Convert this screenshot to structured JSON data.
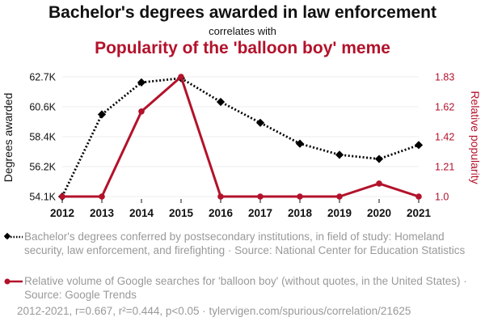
{
  "header": {
    "title": "Bachelor's degrees awarded in law enforcement",
    "subtitle": "correlates with",
    "title2": "Popularity of the 'balloon boy' meme"
  },
  "colors": {
    "series1": "#000000",
    "series2": "#b3122b",
    "muted": "#999999",
    "grid": "#eeeeee"
  },
  "chart_data": {
    "type": "line",
    "x": [
      2012,
      2013,
      2014,
      2015,
      2016,
      2017,
      2018,
      2019,
      2020,
      2021
    ],
    "series": [
      {
        "name": "Bachelor's degrees awarded",
        "axis": "left",
        "style": "dotted",
        "marker": "diamond",
        "values": [
          54100,
          60000,
          62300,
          62600,
          60900,
          59400,
          57900,
          57100,
          56800,
          57800
        ]
      },
      {
        "name": "Relative popularity",
        "axis": "right",
        "style": "solid",
        "marker": "circle",
        "values": [
          1.0,
          1.0,
          1.59,
          1.83,
          1.0,
          1.0,
          1.0,
          1.0,
          1.09,
          1.0
        ]
      }
    ],
    "ylabel_left": "Degrees awarded",
    "ylabel_right": "Relative popularity",
    "ylim_left": [
      54100,
      62700
    ],
    "ylim_right": [
      1.0,
      1.83
    ],
    "yticks_left": [
      "54.1K",
      "56.2K",
      "58.4K",
      "60.6K",
      "62.7K"
    ],
    "yticks_right": [
      "1.0",
      "1.21",
      "1.42",
      "1.62",
      "1.83"
    ],
    "xtick_labels": [
      "2012",
      "2013",
      "2014",
      "2015",
      "2016",
      "2017",
      "2018",
      "2019",
      "2020",
      "2021"
    ],
    "grid": true
  },
  "legend": {
    "item1": "Bachelor's degrees conferred by postsecondary institutions, in field of study: Homeland security, law enforcement, and firefighting · Source: National Center for Education Statistics",
    "item2": "Relative volume of Google searches for 'balloon boy' (without quotes, in the United States) · Source: Google Trends"
  },
  "footer": "2012-2021, r=0.667, r²=0.444, p<0.05 · tylervigen.com/spurious/correlation/21625"
}
